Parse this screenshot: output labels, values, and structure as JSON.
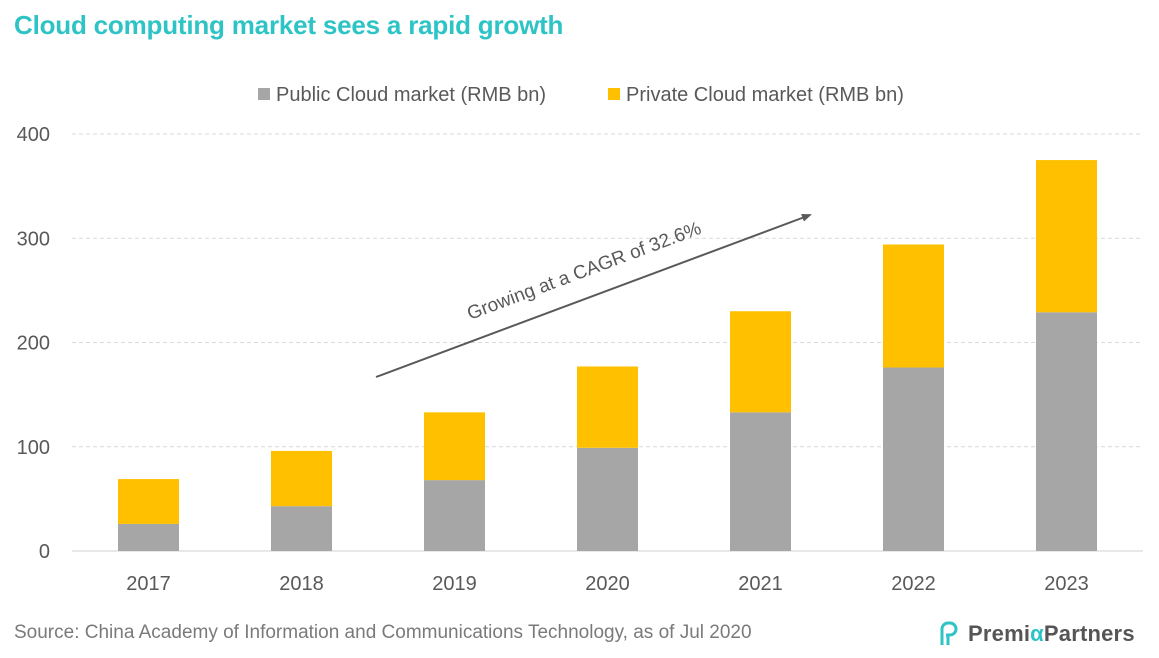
{
  "title": "Cloud computing market sees a rapid growth",
  "source": "Source: China Academy of Information and Communications Technology, as of Jul 2020",
  "brand": {
    "prefix": "Premi",
    "alpha": "α",
    "suffix": "Partners",
    "icon": "pp-logo-icon"
  },
  "colors": {
    "title": "#2ec4c6",
    "public": "#a6a6a6",
    "private": "#ffc000",
    "grid": "#d9d9d9",
    "arrow": "#595959"
  },
  "chart_data": {
    "type": "bar",
    "stacked": true,
    "categories": [
      "2017",
      "2018",
      "2019",
      "2020",
      "2021",
      "2022",
      "2023"
    ],
    "series": [
      {
        "name": "Public Cloud market (RMB bn)",
        "color": "#a6a6a6",
        "values": [
          26,
          43,
          68,
          99,
          133,
          176,
          229
        ]
      },
      {
        "name": "Private Cloud market (RMB bn)",
        "color": "#ffc000",
        "values": [
          43,
          53,
          65,
          78,
          97,
          118,
          146
        ]
      }
    ],
    "ylim": [
      0,
      400
    ],
    "yticks": [
      0,
      100,
      200,
      300,
      400
    ],
    "grid": true,
    "legend_position": "top-center",
    "annotation": "Growing at a CAGR of 32.6%"
  }
}
